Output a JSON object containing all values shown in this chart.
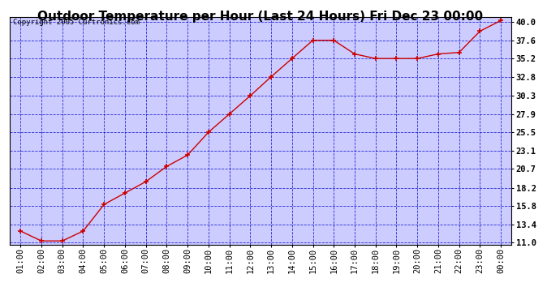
{
  "title": "Outdoor Temperature per Hour (Last 24 Hours) Fri Dec 23 00:00",
  "copyright": "Copyright 2005 Curtronics.com",
  "hours": [
    "01:00",
    "02:00",
    "03:00",
    "04:00",
    "05:00",
    "06:00",
    "07:00",
    "08:00",
    "09:00",
    "10:00",
    "11:00",
    "12:00",
    "13:00",
    "14:00",
    "15:00",
    "16:00",
    "17:00",
    "18:00",
    "19:00",
    "20:00",
    "21:00",
    "22:00",
    "23:00",
    "00:00"
  ],
  "temps": [
    12.5,
    11.2,
    11.2,
    12.5,
    16.0,
    17.5,
    19.0,
    21.0,
    22.5,
    25.5,
    27.9,
    30.3,
    32.8,
    35.2,
    37.6,
    37.6,
    35.8,
    35.2,
    35.2,
    35.2,
    35.8,
    36.0,
    38.8,
    40.2
  ],
  "ymin": 11.0,
  "ymax": 40.2,
  "yticks": [
    11.0,
    13.4,
    15.8,
    18.2,
    20.7,
    23.1,
    25.5,
    27.9,
    30.3,
    32.8,
    35.2,
    37.6,
    40.0
  ],
  "line_color": "#cc0000",
  "marker_color": "#cc0000",
  "plot_bg": "#ccccff",
  "outer_bg": "#ffffff",
  "grid_color": "#0000cc",
  "title_color": "#000000",
  "border_color": "#000000",
  "title_fontsize": 11,
  "copyright_fontsize": 6.5,
  "tick_fontsize": 7.5,
  "ytick_labels": [
    "11.0",
    "13.4",
    "15.8",
    "18.2",
    "20.7",
    "23.1",
    "25.5",
    "27.9",
    "30.3",
    "32.8",
    "35.2",
    "37.6",
    "40.0"
  ]
}
